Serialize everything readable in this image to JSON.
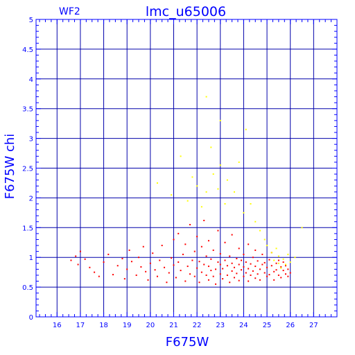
{
  "chart_data": {
    "type": "scatter",
    "title": "lmc_u65006",
    "panel_label": "WF2",
    "xlabel": "F675W",
    "ylabel": "F675W  chi",
    "xlim": [
      15.1,
      28.0
    ],
    "ylim": [
      0,
      5
    ],
    "x_ticks": [
      16,
      17,
      18,
      19,
      20,
      21,
      22,
      23,
      24,
      25,
      26,
      27
    ],
    "y_ticks": [
      0,
      0.5,
      1,
      1.5,
      2,
      2.5,
      3,
      3.5,
      4,
      4.5,
      5
    ],
    "grid": true,
    "colors": {
      "axis": "#0000ff",
      "grid": "#0000aa",
      "red_series": "#ff0000",
      "yellow_series": "#ffff00"
    },
    "series": [
      {
        "color": "red",
        "points": [
          [
            16.6,
            0.95
          ],
          [
            16.8,
            1.02
          ],
          [
            16.9,
            0.88
          ],
          [
            17.0,
            1.1
          ],
          [
            17.2,
            0.97
          ],
          [
            17.4,
            0.83
          ],
          [
            17.6,
            0.75
          ],
          [
            17.8,
            0.68
          ],
          [
            18.0,
            0.92
          ],
          [
            18.2,
            1.05
          ],
          [
            18.4,
            0.71
          ],
          [
            18.6,
            0.86
          ],
          [
            18.8,
            0.98
          ],
          [
            18.9,
            0.64
          ],
          [
            19.0,
            0.8
          ],
          [
            19.1,
            1.12
          ],
          [
            19.2,
            0.93
          ],
          [
            19.4,
            0.7
          ],
          [
            19.5,
            1.0
          ],
          [
            19.6,
            0.84
          ],
          [
            19.7,
            1.18
          ],
          [
            19.8,
            0.76
          ],
          [
            19.9,
            0.62
          ],
          [
            20.0,
            0.9
          ],
          [
            20.1,
            1.07
          ],
          [
            20.2,
            0.79
          ],
          [
            20.3,
            0.68
          ],
          [
            20.4,
            0.95
          ],
          [
            20.5,
            1.2
          ],
          [
            20.6,
            0.83
          ],
          [
            20.7,
            0.58
          ],
          [
            20.8,
            0.74
          ],
          [
            20.9,
            0.99
          ],
          [
            21.0,
            0.87
          ],
          [
            21.0,
            1.3
          ],
          [
            21.1,
            0.66
          ],
          [
            21.2,
            0.92
          ],
          [
            21.2,
            1.4
          ],
          [
            21.3,
            0.78
          ],
          [
            21.4,
            1.05
          ],
          [
            21.5,
            0.6
          ],
          [
            21.5,
            1.22
          ],
          [
            21.6,
            0.85
          ],
          [
            21.7,
            0.72
          ],
          [
            21.7,
            1.55
          ],
          [
            21.8,
            0.95
          ],
          [
            21.9,
            0.68
          ],
          [
            21.9,
            1.1
          ],
          [
            22.0,
            0.82
          ],
          [
            22.0,
            1.35
          ],
          [
            22.1,
            0.58
          ],
          [
            22.1,
            0.93
          ],
          [
            22.2,
            0.75
          ],
          [
            22.2,
            1.18
          ],
          [
            22.3,
            0.88
          ],
          [
            22.3,
            1.62
          ],
          [
            22.4,
            0.7
          ],
          [
            22.4,
            1.02
          ],
          [
            22.5,
            0.62
          ],
          [
            22.5,
            0.85
          ],
          [
            22.5,
            1.28
          ],
          [
            22.6,
            0.78
          ],
          [
            22.6,
            0.97
          ],
          [
            22.7,
            0.68
          ],
          [
            22.7,
            1.12
          ],
          [
            22.8,
            0.8
          ],
          [
            22.8,
            0.55
          ],
          [
            22.9,
            0.92
          ],
          [
            22.9,
            1.45
          ],
          [
            23.0,
            0.72
          ],
          [
            23.0,
            0.88
          ],
          [
            23.0,
            1.06
          ],
          [
            23.1,
            0.64
          ],
          [
            23.1,
            0.81
          ],
          [
            23.2,
            0.95
          ],
          [
            23.2,
            1.25
          ],
          [
            23.3,
            0.7
          ],
          [
            23.3,
            0.86
          ],
          [
            23.4,
            0.58
          ],
          [
            23.4,
            1.02
          ],
          [
            23.5,
            0.77
          ],
          [
            23.5,
            0.9
          ],
          [
            23.5,
            1.38
          ],
          [
            23.6,
            0.66
          ],
          [
            23.6,
            0.83
          ],
          [
            23.7,
            0.98
          ],
          [
            23.7,
            0.73
          ],
          [
            23.8,
            0.61
          ],
          [
            23.8,
            0.88
          ],
          [
            23.8,
            1.15
          ],
          [
            23.9,
            0.79
          ],
          [
            23.9,
            0.95
          ],
          [
            24.0,
            0.68
          ],
          [
            24.0,
            0.84
          ],
          [
            24.0,
            1.05
          ],
          [
            24.1,
            0.74
          ],
          [
            24.1,
            0.92
          ],
          [
            24.2,
            0.6
          ],
          [
            24.2,
            0.81
          ],
          [
            24.2,
            1.22
          ],
          [
            24.3,
            0.7
          ],
          [
            24.3,
            0.89
          ],
          [
            24.4,
            0.77
          ],
          [
            24.4,
            1.0
          ],
          [
            24.5,
            0.65
          ],
          [
            24.5,
            0.85
          ],
          [
            24.5,
            1.12
          ],
          [
            24.6,
            0.72
          ],
          [
            24.6,
            0.94
          ],
          [
            24.7,
            0.8
          ],
          [
            24.7,
            0.62
          ],
          [
            24.8,
            0.88
          ],
          [
            24.8,
            1.05
          ],
          [
            24.9,
            0.74
          ],
          [
            24.9,
            0.91
          ],
          [
            25.0,
            0.68
          ],
          [
            25.0,
            0.83
          ],
          [
            25.1,
            0.96
          ],
          [
            25.1,
            0.71
          ],
          [
            25.2,
            0.86
          ],
          [
            25.2,
            1.08
          ],
          [
            25.3,
            0.76
          ],
          [
            25.3,
            0.62
          ],
          [
            25.4,
            0.9
          ],
          [
            25.4,
            0.79
          ],
          [
            25.5,
            0.7
          ],
          [
            25.5,
            0.95
          ],
          [
            25.6,
            0.84
          ],
          [
            25.6,
            0.66
          ],
          [
            25.7,
            0.78
          ],
          [
            25.7,
            0.92
          ],
          [
            25.8,
            0.72
          ],
          [
            25.8,
            0.86
          ],
          [
            25.9,
            0.68
          ],
          [
            25.9,
            0.8
          ],
          [
            26.0,
            0.74
          ]
        ]
      },
      {
        "color": "yellow",
        "points": [
          [
            20.3,
            2.25
          ],
          [
            20.9,
            2.05
          ],
          [
            21.3,
            2.7
          ],
          [
            21.6,
            1.95
          ],
          [
            21.8,
            2.35
          ],
          [
            22.0,
            2.2
          ],
          [
            22.2,
            1.85
          ],
          [
            22.4,
            3.7
          ],
          [
            22.4,
            2.1
          ],
          [
            22.6,
            2.85
          ],
          [
            22.7,
            2.4
          ],
          [
            22.9,
            2.15
          ],
          [
            23.0,
            3.3
          ],
          [
            23.0,
            2.55
          ],
          [
            23.2,
            1.9
          ],
          [
            23.3,
            2.3
          ],
          [
            23.6,
            2.1
          ],
          [
            23.8,
            2.6
          ],
          [
            24.0,
            1.75
          ],
          [
            24.1,
            3.15
          ],
          [
            24.3,
            1.9
          ],
          [
            24.5,
            1.6
          ],
          [
            24.7,
            1.45
          ],
          [
            24.9,
            1.3
          ],
          [
            25.0,
            1.2
          ],
          [
            25.2,
            1.08
          ],
          [
            25.3,
            0.95
          ],
          [
            25.4,
            1.15
          ],
          [
            25.5,
            0.9
          ],
          [
            25.5,
            1.02
          ],
          [
            25.6,
            0.82
          ],
          [
            25.7,
            0.97
          ],
          [
            25.8,
            0.88
          ],
          [
            25.9,
            1.05
          ],
          [
            26.0,
            0.92
          ],
          [
            26.2,
            1.0
          ],
          [
            26.5,
            1.5
          ]
        ]
      }
    ]
  }
}
